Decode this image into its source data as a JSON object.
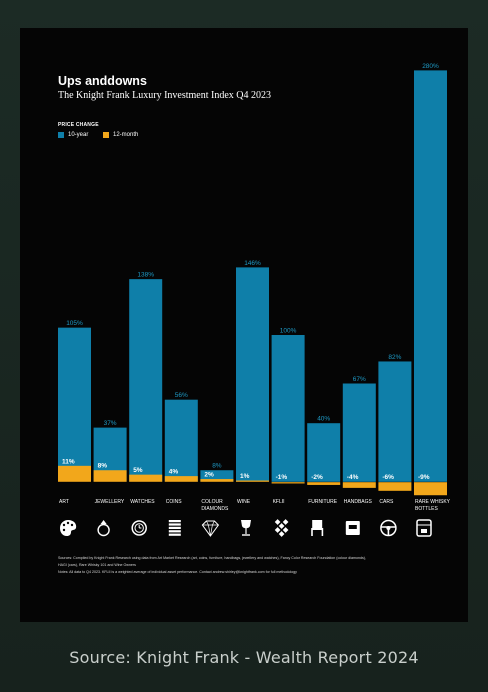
{
  "chart_data": {
    "type": "bar",
    "title": "Ups anddowns",
    "subtitle": "The Knight Frank Luxury Investment Index Q4 2023",
    "legend_title": "PRICE CHANGE",
    "legend_placement": "top-left",
    "ylim": [
      -10,
      290
    ],
    "categories": [
      "ART",
      "JEWELLERY",
      "WATCHES",
      "COINS",
      "COLOUR DIAMONDS",
      "WINE",
      "KFLII",
      "FURNITURE",
      "HANDBAGS",
      "CARS",
      "RARE WHISKY BOTTLES"
    ],
    "category_lines": [
      [
        "ART"
      ],
      [
        "JEWELLERY"
      ],
      [
        "WATCHES"
      ],
      [
        "COINS"
      ],
      [
        "COLOUR",
        "DIAMONDS"
      ],
      [
        "WINE"
      ],
      [
        "KFLII"
      ],
      [
        "FURNITURE"
      ],
      [
        "HANDBAGS"
      ],
      [
        "CARS"
      ],
      [
        "RARE WHISKY",
        "BOTTLES"
      ]
    ],
    "icons": [
      "palette-icon",
      "ring-icon",
      "watch-icon",
      "coins-icon",
      "diamond-icon",
      "wine-glass-icon",
      "kflii-logo-icon",
      "chair-icon",
      "handbag-icon",
      "steering-wheel-icon",
      "whisky-bottle-icon"
    ],
    "series": [
      {
        "name": "10-year",
        "color": "#0f7fa9",
        "values": [
          105,
          37,
          138,
          56,
          8,
          146,
          100,
          40,
          67,
          82,
          280
        ],
        "labels": [
          "105%",
          "37%",
          "138%",
          "56%",
          "8%",
          "146%",
          "100%",
          "40%",
          "67%",
          "82%",
          "280%"
        ]
      },
      {
        "name": "12-month",
        "color": "#f2a71b",
        "values": [
          11,
          8,
          5,
          4,
          2,
          1,
          -1,
          -2,
          -4,
          -6,
          -9
        ],
        "labels": [
          "11%",
          "8%",
          "5%",
          "4%",
          "2%",
          "1%",
          "-1%",
          "-2%",
          "-4%",
          "-6%",
          "-9%"
        ]
      }
    ],
    "sources": [
      "Sources: Compiled by Knight Frank Research using data from Art Market Research (art, coins, furniture, handbags, jewellery and watches), Fancy Color Research Foundation (colour diamonds),",
      "HAGI (cars), Rare Whisky 101 and Wine Owners",
      "Notes: All data to Q4 2023. KFLII is a weighted average of individual asset performance. Contact andrew.shirley@knightfrank.com for full methodology"
    ]
  },
  "caption": "Source: Knight Frank - Wealth Report 2024"
}
